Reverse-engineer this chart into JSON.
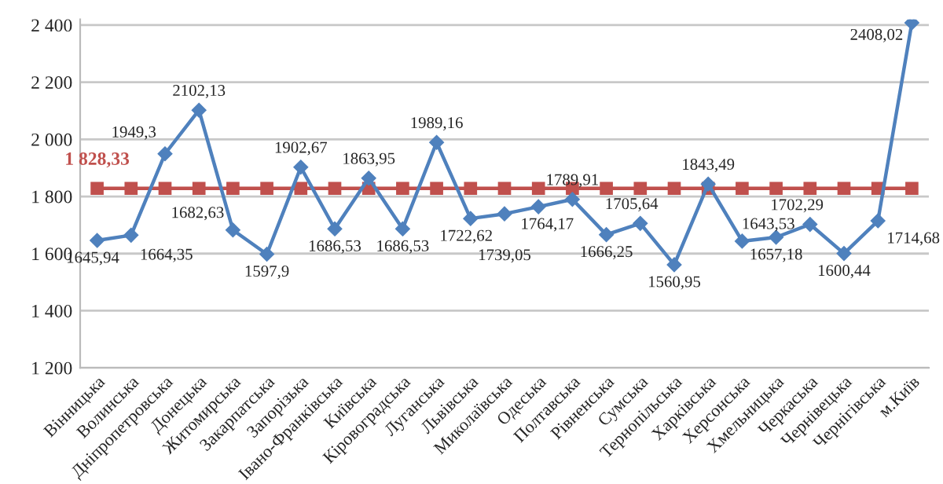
{
  "chart_data": {
    "type": "line",
    "categories": [
      "Вінницька",
      "Волинська",
      "Дніпропетровська",
      "Донецька",
      "Житомирська",
      "Закарпатська",
      "Запорізька",
      "Івано-Франківська",
      "Київська",
      "Кіровоградська",
      "Луганська",
      "Львівська",
      "Миколаївська",
      "Одеська",
      "Полтавська",
      "Рівненська",
      "Сумська",
      "Тернопільська",
      "Харківська",
      "Херсонська",
      "Хмельницька",
      "Черкаська",
      "Чернівецька",
      "Чернігівська",
      "м.Київ"
    ],
    "series": [
      {
        "color": "#4f81bd",
        "marker": "diamond",
        "values": [
          1645.94,
          1664.35,
          1949.3,
          2102.13,
          1682.63,
          1597.9,
          1902.67,
          1686.53,
          1863.95,
          1686.53,
          1989.16,
          1722.62,
          1739.05,
          1764.17,
          1789.91,
          1666.25,
          1705.64,
          1560.95,
          1843.49,
          1643.53,
          1657.18,
          1702.29,
          1600.44,
          1714.68,
          2408.02
        ],
        "value_labels": [
          "1645,94",
          "1664,35",
          "1949,3",
          "2102,13",
          "1682,63",
          "1597,9",
          "1902,67",
          "1686,53",
          "1863,95",
          "1686,53",
          "1989,16",
          "1722,62",
          "1739,05",
          "1764,17",
          "1789,91",
          "1666,25",
          "1705,64",
          "1560,95",
          "1843,49",
          "1643,53",
          "1657,18",
          "1702,29",
          "1600,44",
          "1714,68",
          "2408,02"
        ]
      },
      {
        "color": "#c0504d",
        "marker": "square",
        "values": [
          1828.33,
          1828.33,
          1828.33,
          1828.33,
          1828.33,
          1828.33,
          1828.33,
          1828.33,
          1828.33,
          1828.33,
          1828.33,
          1828.33,
          1828.33,
          1828.33,
          1828.33,
          1828.33,
          1828.33,
          1828.33,
          1828.33,
          1828.33,
          1828.33,
          1828.33,
          1828.33,
          1828.33,
          1828.33
        ],
        "value_labels": [
          "1 828,33",
          null,
          null,
          null,
          null,
          null,
          null,
          null,
          null,
          null,
          null,
          null,
          null,
          null,
          null,
          null,
          null,
          null,
          null,
          null,
          null,
          null,
          null,
          null,
          null
        ]
      }
    ],
    "ylim": [
      1200,
      2420
    ],
    "yticks": [
      {
        "value": 1200,
        "label": "1 200"
      },
      {
        "value": 1400,
        "label": "1 400"
      },
      {
        "value": 1600,
        "label": "1 600"
      },
      {
        "value": 1800,
        "label": "1 800"
      },
      {
        "value": 2000,
        "label": "2 000"
      },
      {
        "value": 2200,
        "label": "2 200"
      },
      {
        "value": 2400,
        "label": "2 400"
      }
    ],
    "grid": "y",
    "legend": false,
    "line_style": "solid"
  }
}
